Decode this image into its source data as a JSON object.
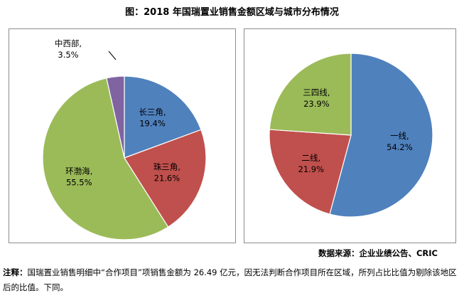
{
  "title": "图：2018 年国瑞置业销售金额区域与城市分布情况",
  "source_label": "数据来源：企业业绩公告、CRIC",
  "note_prefix": "注释：",
  "note_text": "国瑞置业销售明细中“合作项目”项销售金额为 26.49 亿元，因无法判断合作项目所在区域，所列占比比值为剔除该地区后的比值。下同。",
  "chart_data": [
    {
      "type": "pie",
      "slices": [
        {
          "name": "长三角",
          "value": 19.4,
          "label": "19.4%",
          "color": "#4F81BD"
        },
        {
          "name": "珠三角",
          "value": 21.6,
          "label": "21.6%",
          "color": "#C0504D"
        },
        {
          "name": "环渤海",
          "value": 55.5,
          "label": "55.5%",
          "color": "#9BBB59"
        },
        {
          "name": "中西部",
          "value": 3.5,
          "label": "3.5%",
          "color": "#8064A2"
        }
      ]
    },
    {
      "type": "pie",
      "slices": [
        {
          "name": "一线",
          "value": 54.2,
          "label": "54.2%",
          "color": "#4F81BD"
        },
        {
          "name": "二线",
          "value": 21.9,
          "label": "21.9%",
          "color": "#C0504D"
        },
        {
          "name": "三四线",
          "value": 23.9,
          "label": "23.9%",
          "color": "#9BBB59"
        }
      ]
    }
  ]
}
